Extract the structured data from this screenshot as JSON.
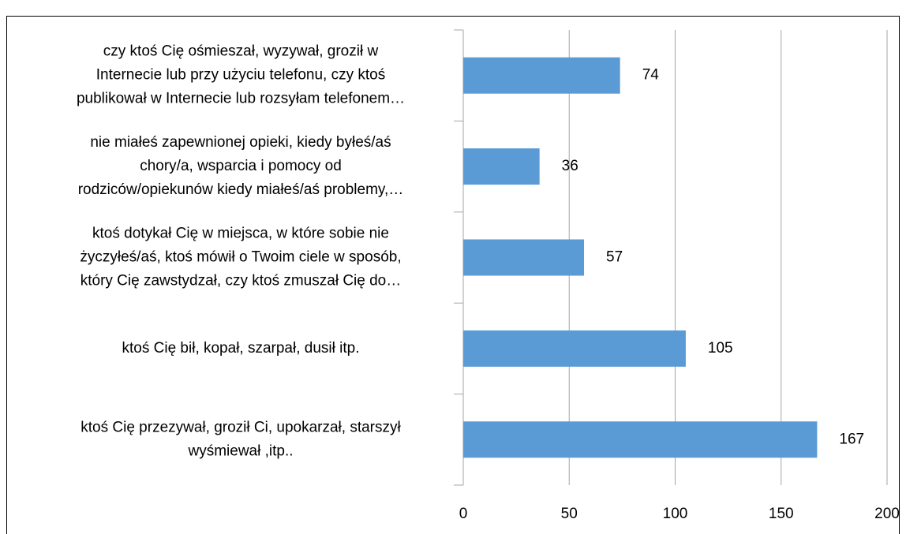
{
  "chart_data": {
    "type": "bar",
    "orientation": "horizontal",
    "categories": [
      [
        "czy ktoś Cię ośmieszał, wyzywał, groził w",
        "Internecie lub przy użyciu telefonu, czy ktoś",
        "publikował w Internecie lub rozsyłam telefonem…"
      ],
      [
        "nie miałeś zapewnionej opieki, kiedy byłeś/aś",
        "chory/a, wsparcia i pomocy od",
        "rodziców/opiekunów kiedy miałeś/aś problemy,…"
      ],
      [
        "ktoś dotykał Cię w miejsca, w które sobie nie",
        "życzyłeś/aś, ktoś mówił o Twoim ciele w sposób,",
        "który Cię zawstydzał, czy ktoś zmuszał Cię do…"
      ],
      [
        "ktoś Cię bił, kopał, szarpał, dusił itp."
      ],
      [
        "ktoś Cię przezywał, groził Ci, upokarzał, starszył",
        "wyśmiewał ,itp.."
      ]
    ],
    "values": [
      74,
      36,
      57,
      105,
      167
    ],
    "color": "#5b9bd5",
    "xlim": [
      0,
      200
    ],
    "xticks": [
      0,
      50,
      100,
      150,
      200
    ],
    "grid": true
  }
}
